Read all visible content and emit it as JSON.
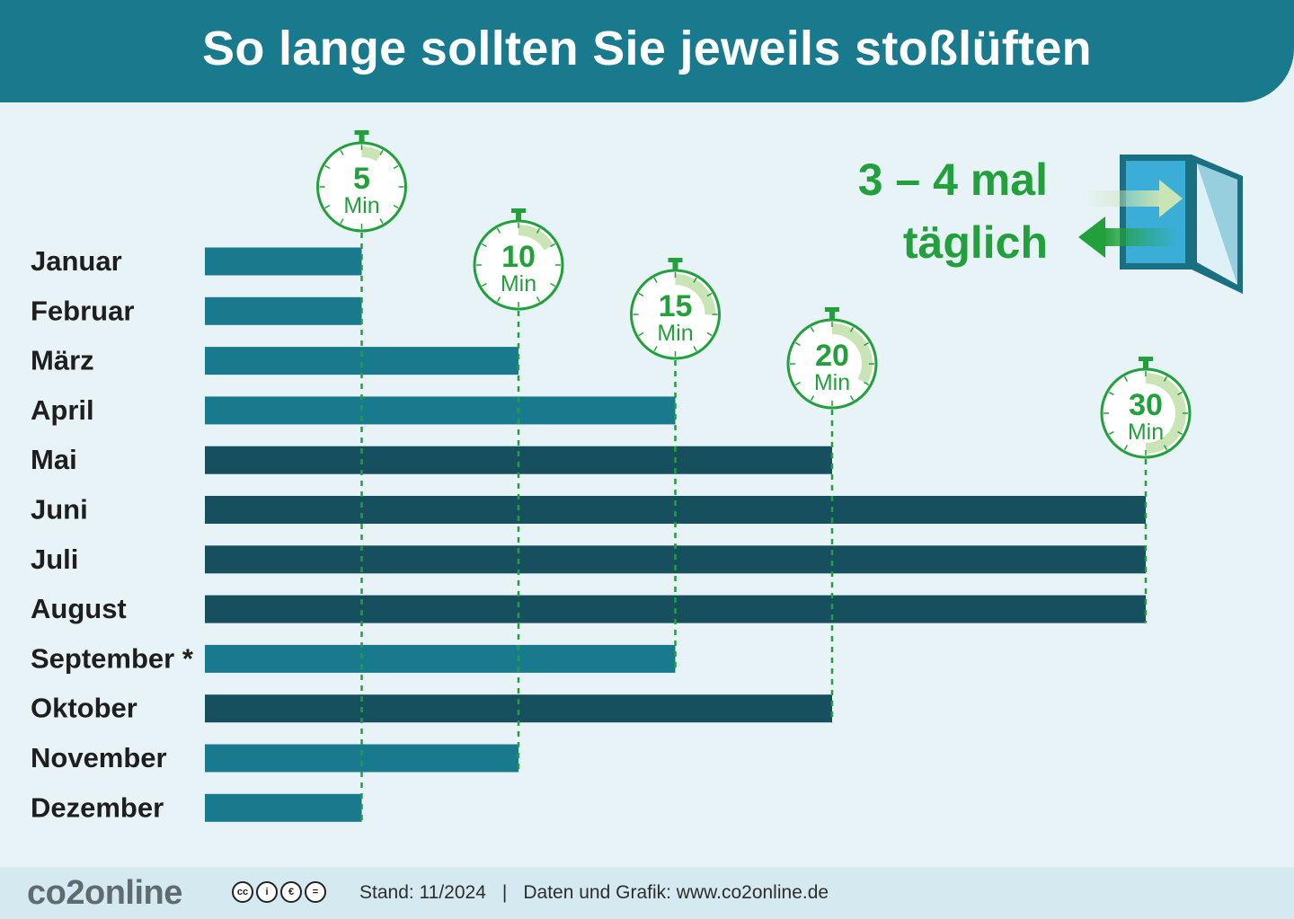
{
  "title": "So lange sollten Sie jeweils stoßlüften",
  "frequency": {
    "line1": "3 – 4 mal",
    "line2": "täglich"
  },
  "timer_unit": "Min",
  "chart_data": {
    "type": "bar",
    "orientation": "horizontal",
    "categories": [
      "Januar",
      "Februar",
      "März",
      "April",
      "Mai",
      "Juni",
      "Juli",
      "August",
      "September *",
      "Oktober",
      "November",
      "Dezember"
    ],
    "values": [
      5,
      5,
      10,
      15,
      20,
      30,
      30,
      30,
      15,
      20,
      10,
      5
    ],
    "unit": "Min",
    "timer_marks": [
      5,
      10,
      15,
      20,
      30
    ],
    "xlim": [
      0,
      30
    ],
    "colors": {
      "light_bar": "#1a7a8d",
      "dark_bar": "#16505f",
      "accent_green": "#22a03c",
      "light_green": "#c9e4b5"
    },
    "grid": false,
    "legend": "none"
  },
  "footer": {
    "logo": "co2online",
    "license_icons": [
      "cc-icon",
      "by-icon",
      "nc-icon",
      "nd-icon"
    ],
    "stand": "Stand: 11/2024",
    "separator": "|",
    "source": "Daten und Grafik: www.co2online.de"
  }
}
